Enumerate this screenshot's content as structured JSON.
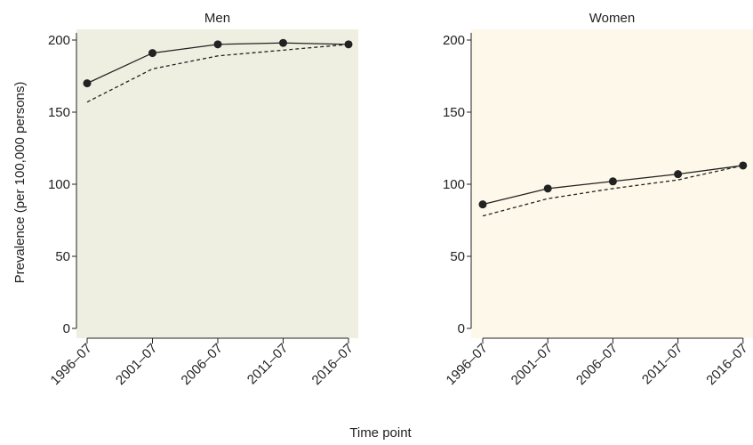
{
  "chart_data": {
    "type": "line",
    "xlabel": "Time point",
    "ylabel": "Prevalence (per 100,000 persons)",
    "categories": [
      "1996–07",
      "2001–07",
      "2006–07",
      "2011–07",
      "2016–07"
    ],
    "ylim": [
      0,
      205
    ],
    "yticks": [
      0,
      50,
      100,
      150,
      200
    ],
    "grid": false,
    "panels": [
      {
        "title": "Men",
        "background": "#efefe1",
        "series": [
          {
            "style": "solid",
            "markers": true,
            "color": "#222222",
            "values": [
              170,
              191,
              197,
              198,
              197
            ]
          },
          {
            "style": "dashed",
            "markers": false,
            "color": "#222222",
            "values": [
              157,
              180,
              189,
              193,
              197
            ]
          }
        ]
      },
      {
        "title": "Women",
        "background": "#fdf8e9",
        "series": [
          {
            "style": "solid",
            "markers": true,
            "color": "#222222",
            "values": [
              86,
              97,
              102,
              107,
              113
            ]
          },
          {
            "style": "dashed",
            "markers": false,
            "color": "#222222",
            "values": [
              78,
              90,
              97,
              103,
              113
            ]
          }
        ]
      }
    ]
  }
}
